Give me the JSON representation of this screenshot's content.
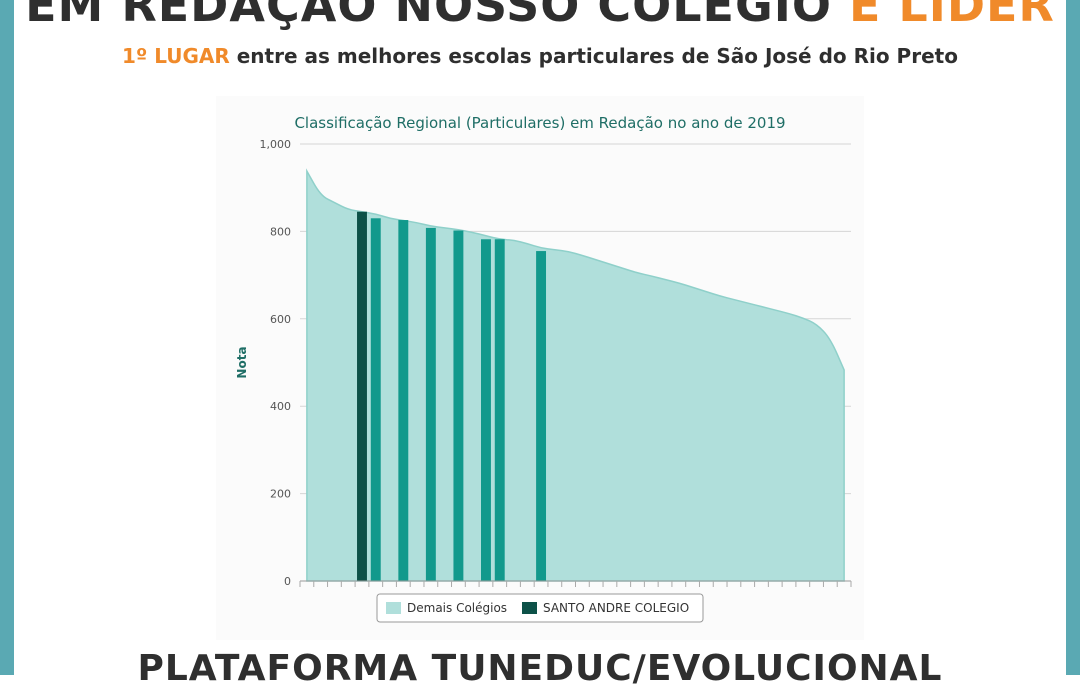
{
  "header": {
    "headline_main": "EM REDAÇÃO NOSSO COLÉGIO ",
    "headline_accent": "É LÍDER",
    "subhead_accent": "1º LUGAR",
    "subhead_rest": " entre as melhores escolas particulares de São José do Rio Preto"
  },
  "footer": {
    "title": "PLATAFORMA TUNEDUC/EVOLUCIONAL"
  },
  "colors": {
    "frame": "#5aa9b3",
    "accent": "#f08a2a",
    "area_fill": "#b0dfdb",
    "area_line": "#8fd0ca",
    "highlight_dark": "#0d5148",
    "highlight_teal": "#12998c",
    "title_color": "#1f6e66"
  },
  "chart_data": {
    "type": "area",
    "title": "Classificação Regional (Particulares) em Redação no ano de 2019",
    "ylabel": "Nota",
    "xlabel": "",
    "ylim": [
      0,
      1000
    ],
    "yticks": [
      0,
      200,
      400,
      600,
      800,
      1000
    ],
    "ytick_labels": [
      "0",
      "200",
      "400",
      "600",
      "800",
      "1,000"
    ],
    "grid": true,
    "legend_position": "bottom",
    "n_categories": 40,
    "series": [
      {
        "name": "Demais Colégios",
        "type": "area",
        "values": [
          938,
          882,
          866,
          850,
          845,
          840,
          830,
          825,
          820,
          812,
          808,
          804,
          798,
          790,
          782,
          780,
          772,
          762,
          758,
          754,
          745,
          735,
          725,
          715,
          705,
          698,
          690,
          682,
          672,
          662,
          652,
          644,
          636,
          628,
          620,
          612,
          602,
          588,
          555,
          483
        ]
      },
      {
        "name": "SANTO ANDRE COLEGIO",
        "type": "bar",
        "values": [
          null,
          null,
          null,
          null,
          845,
          null,
          null,
          null,
          null,
          null,
          null,
          null,
          null,
          null,
          null,
          null,
          null,
          null,
          null,
          null,
          null,
          null,
          null,
          null,
          null,
          null,
          null,
          null,
          null,
          null,
          null,
          null,
          null,
          null,
          null,
          null,
          null,
          null,
          null,
          null
        ]
      },
      {
        "name": "",
        "type": "bar",
        "values": [
          null,
          null,
          null,
          null,
          null,
          830,
          null,
          826,
          null,
          808,
          null,
          802,
          null,
          782,
          782,
          null,
          null,
          755,
          null,
          null,
          null,
          null,
          null,
          null,
          null,
          null,
          null,
          null,
          null,
          null,
          null,
          null,
          null,
          null,
          null,
          null,
          null,
          null,
          null,
          null
        ]
      }
    ],
    "legend": [
      "Demais Colégios",
      "SANTO ANDRE COLEGIO"
    ]
  }
}
